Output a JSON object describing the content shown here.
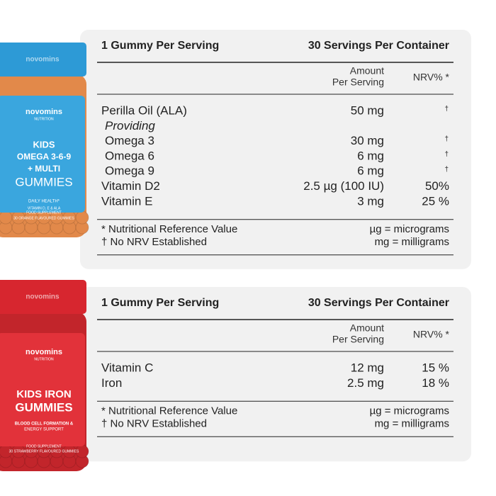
{
  "panels": [
    {
      "bottle": {
        "cap_text": "novomins",
        "lines": [
          "novomins",
          "NUTRITION",
          "KIDS",
          "OMEGA 3-6-9",
          "+ MULTI",
          "GUMMIES",
          "DAILY HEALTH*",
          "VITAMIN D, E & ALA",
          "FOOD SUPPLEMENT",
          "30 ORANGE FLAVOURED GUMMIES"
        ]
      },
      "table": {
        "serving": "1 Gummy Per Serving",
        "container": "30 Servings Per Container",
        "amount_header": [
          "Amount",
          "Per Serving"
        ],
        "nrv_header": "NRV% *",
        "rows": [
          {
            "name": "Perilla Oil (ALA)",
            "amount": "50 mg",
            "nrv": "†"
          },
          {
            "name": "Providing",
            "italic": true,
            "indent": true
          },
          {
            "name": "Omega 3",
            "amount": "30 mg",
            "nrv": "†",
            "indent": true
          },
          {
            "name": "Omega 6",
            "amount": "6 mg",
            "nrv": "†",
            "indent": true
          },
          {
            "name": "Omega 9",
            "amount": "6 mg",
            "nrv": "†",
            "indent": true
          },
          {
            "name": "Vitamin D2",
            "amount": "2.5 µg (100 IU)",
            "nrv": "50%"
          },
          {
            "name": "Vitamin E",
            "amount": "3 mg",
            "nrv": "25 %"
          }
        ],
        "footnotes": [
          [
            "* Nutritional Reference Value",
            "µg = micrograms"
          ],
          [
            "† No NRV Established",
            "mg = milligrams"
          ]
        ]
      }
    },
    {
      "bottle": {
        "cap_text": "novomins",
        "lines": [
          "novomins",
          "NUTRITION",
          "KIDS IRON",
          "GUMMIES",
          "BLOOD CELL FORMATION &",
          "ENERGY SUPPORT",
          "FOOD SUPPLEMENT",
          "30 STRAWBERRY FLAVOURED GUMMIES"
        ]
      },
      "table": {
        "serving": "1 Gummy Per Serving",
        "container": "30 Servings Per Container",
        "amount_header": [
          "Amount",
          "Per Serving"
        ],
        "nrv_header": "NRV% *",
        "rows": [
          {
            "name": "Vitamin C",
            "amount": "12 mg",
            "nrv": "15 %"
          },
          {
            "name": "Iron",
            "amount": "2.5 mg",
            "nrv": "18 %"
          }
        ],
        "footnotes": [
          [
            "* Nutritional Reference Value",
            "µg = micrograms"
          ],
          [
            "† No NRV Established",
            "mg = milligrams"
          ]
        ]
      }
    }
  ]
}
